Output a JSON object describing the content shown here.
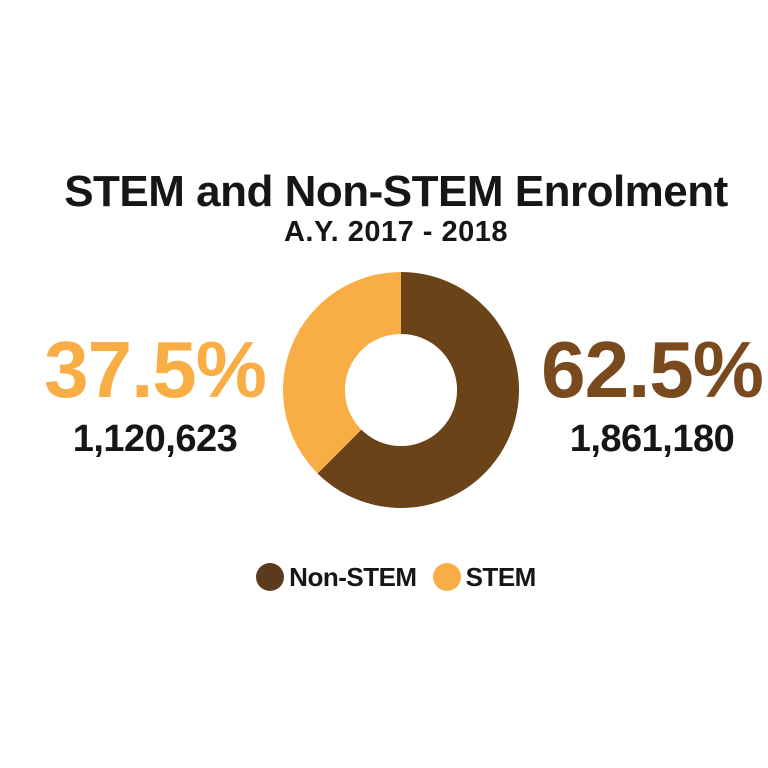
{
  "header": {
    "title": "STEM and Non-STEM Enrolment",
    "subtitle": "A.Y. 2017 - 2018"
  },
  "chart_data": {
    "type": "pie",
    "subtype": "donut",
    "title": "STEM and Non-STEM Enrolment",
    "subtitle": "A.Y. 2017 - 2018",
    "segments": [
      {
        "label": "Non-STEM",
        "value": 1861180,
        "pct": 62.5,
        "color": "#6A4318"
      },
      {
        "label": "STEM",
        "value": 1120623,
        "pct": 37.5,
        "color": "#F9AE45"
      }
    ],
    "start_angle_deg": 0,
    "direction": "clockwise",
    "inner_radius_ratio": 0.475,
    "legend_position": "bottom",
    "background": "#ffffff"
  },
  "labels": {
    "left": {
      "percent": "37.5%",
      "value": "1,120,623",
      "color": "#F9AE45"
    },
    "right": {
      "percent": "62.5%",
      "value": "1,861,180",
      "color": "#7A4A1F"
    }
  },
  "legend": {
    "items": [
      {
        "label": "Non-STEM",
        "color": "#5C3A1D"
      },
      {
        "label": "STEM",
        "color": "#F9AE45"
      }
    ]
  }
}
